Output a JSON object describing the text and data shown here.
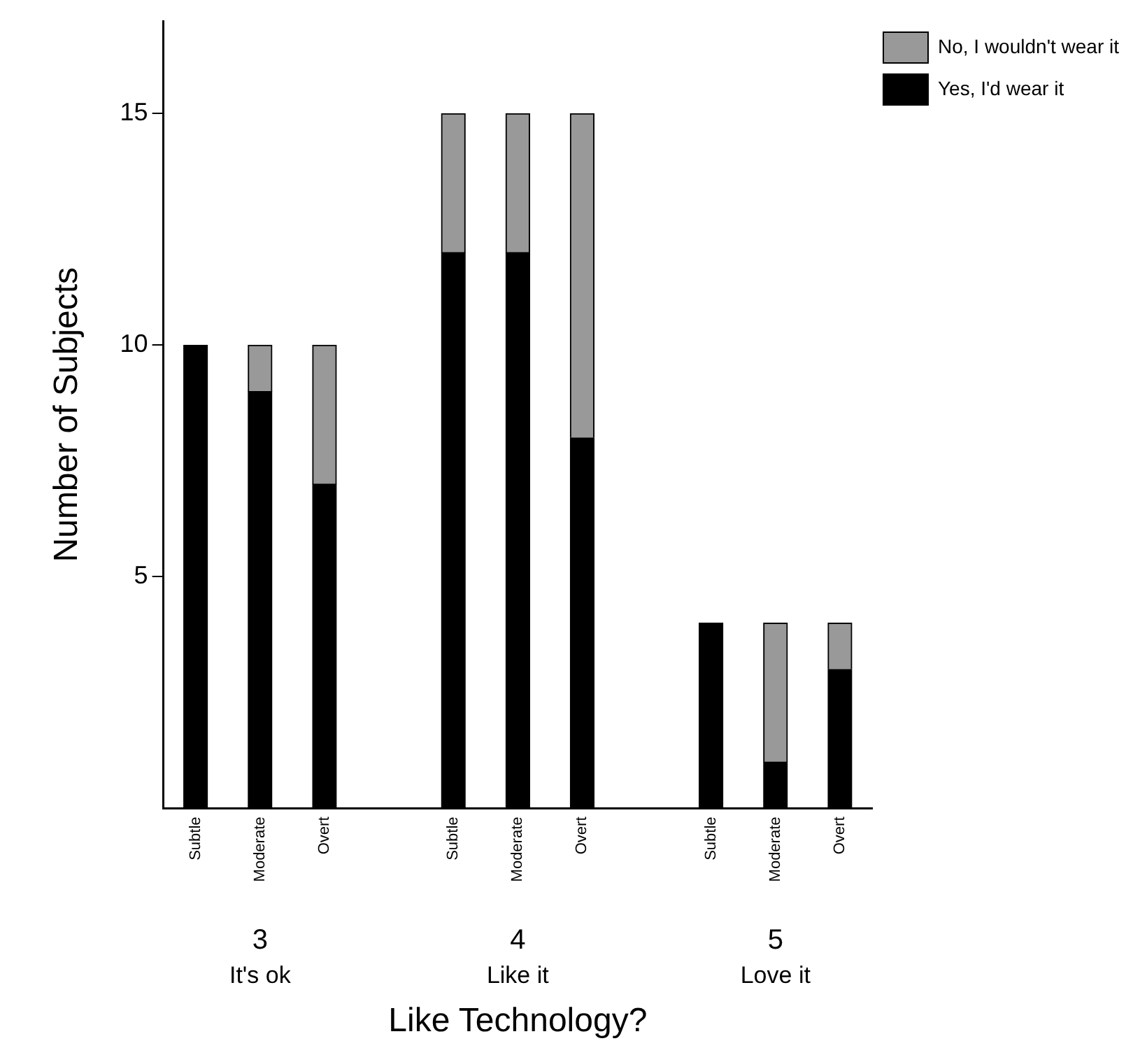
{
  "chart_data": {
    "type": "bar",
    "stacked": true,
    "xlabel": "Like Technology?",
    "ylabel": "Number of Subjects",
    "categories": [
      "Subtle",
      "Moderate",
      "Overt",
      null,
      "Subtle",
      "Moderate",
      "Overt",
      null,
      "Subtle",
      "Moderate",
      "Overt"
    ],
    "series": [
      {
        "name": "Yes, I'd wear it",
        "color": "#000000",
        "values": [
          10,
          9,
          7,
          null,
          12,
          12,
          8,
          null,
          4,
          1,
          3
        ]
      },
      {
        "name": "No, I wouldn't wear it",
        "color": "#999999",
        "values": [
          null,
          1,
          3,
          null,
          3,
          3,
          7,
          null,
          null,
          3,
          1
        ]
      }
    ],
    "annotations": [
      "3",
      "It's ok",
      "4",
      "Like it",
      "5",
      "Love it"
    ],
    "ylim": [
      0,
      17
    ],
    "yticks": [
      5,
      10,
      15
    ],
    "grid": false,
    "legend": "top right"
  }
}
